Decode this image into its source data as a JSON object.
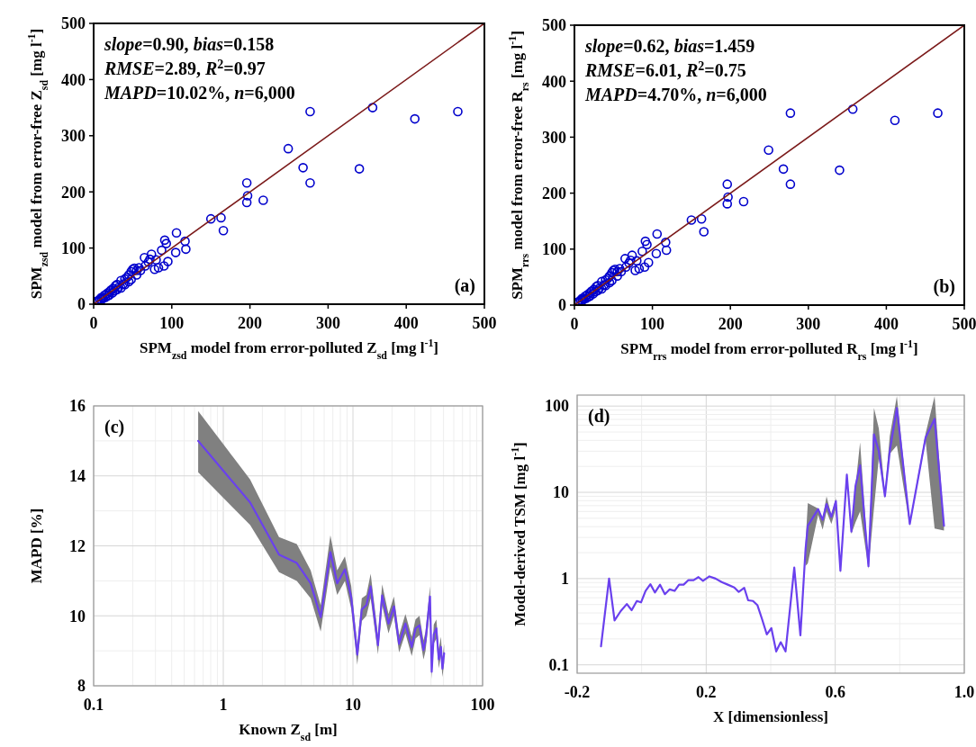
{
  "chart_data": [
    {
      "type": "scatter",
      "xlabel": "SPM$_{zsd}$ model from error-polluted Z$_{sd}$ [mg l$^{-1}$]",
      "ylabel": "SPM$_{zsd}$ model from error-free Z$_{sd}$ [mg l$^{-1}$]",
      "annotations": [
        "slope=0.90, bias=0.158",
        "RMSE=2.89, R$^{2}$=0.97",
        "MAPD=10.02%, n=6,000",
        "(a)"
      ],
      "xlim": [
        0,
        500
      ],
      "ylim": [
        0,
        500
      ],
      "xticks": [
        0,
        100,
        200,
        300,
        400,
        500
      ],
      "yticks": [
        0,
        100,
        200,
        300,
        400,
        500
      ],
      "series": [
        {
          "marker": "circle",
          "color": "#0000cc",
          "x": [
            4,
            5,
            6,
            8,
            10,
            10,
            12,
            14,
            15,
            17,
            18,
            20,
            20,
            22,
            24,
            25,
            27,
            28,
            30,
            30,
            32,
            35,
            35,
            38,
            40,
            40,
            43,
            45,
            45,
            48,
            48,
            50,
            52,
            55,
            55,
            58,
            60,
            65,
            66,
            70,
            72,
            74,
            78,
            80,
            83,
            87,
            90,
            91,
            93,
            95,
            105,
            106,
            117,
            118,
            150,
            163,
            166,
            196,
            197,
            196,
            217,
            249,
            268,
            277,
            277,
            340,
            357,
            411,
            466
          ],
          "values": [
            4.5,
            6,
            5,
            9,
            12,
            8,
            11,
            16,
            12,
            19,
            15,
            22,
            16,
            25,
            20,
            28,
            24,
            33,
            35,
            26,
            30,
            42,
            29,
            36,
            45,
            35,
            48,
            52,
            40,
            58,
            44,
            62,
            64,
            60,
            52,
            65,
            60,
            83,
            68,
            75,
            80,
            89,
            62,
            79,
            65,
            96,
            68,
            114,
            108,
            76,
            92,
            127,
            112,
            98,
            152,
            154,
            131,
            216,
            193,
            181,
            185,
            277,
            243,
            216,
            343,
            241,
            350,
            330,
            343
          ]
        },
        {
          "type": "line",
          "color": "#7b1a1a",
          "x": [
            0,
            500
          ],
          "values": [
            0,
            500
          ]
        }
      ]
    },
    {
      "type": "scatter",
      "xlabel": "SPM$_{rrs}$ model from error-polluted R$_{rs}$ [mg l$^{-1}$]",
      "ylabel": "SPM$_{rrs}$ model from error-free R$_{rs}$ [mg l$^{-1}$]",
      "annotations": [
        "slope=0.62, bias=1.459",
        "RMSE=6.01, R$^{2}$=0.75",
        "MAPD=4.70%, n=6,000",
        "(b)"
      ],
      "xlim": [
        0,
        500
      ],
      "ylim": [
        0,
        500
      ],
      "xticks": [
        0,
        100,
        200,
        300,
        400,
        500
      ],
      "yticks": [
        0,
        100,
        200,
        300,
        400,
        500
      ],
      "series": [
        {
          "marker": "circle",
          "color": "#0000cc",
          "x": [
            4,
            5,
            6,
            8,
            10,
            10,
            12,
            14,
            15,
            17,
            18,
            20,
            20,
            22,
            24,
            25,
            27,
            28,
            30,
            30,
            32,
            35,
            35,
            38,
            40,
            40,
            43,
            45,
            45,
            48,
            48,
            50,
            52,
            55,
            55,
            58,
            60,
            65,
            66,
            70,
            72,
            74,
            78,
            80,
            83,
            87,
            90,
            91,
            93,
            95,
            105,
            106,
            117,
            118,
            150,
            163,
            166,
            196,
            197,
            196,
            217,
            249,
            268,
            277,
            277,
            340,
            357,
            411,
            466
          ],
          "values": [
            4.5,
            6,
            5,
            9,
            12,
            8,
            11,
            16,
            12,
            19,
            15,
            22,
            16,
            25,
            20,
            28,
            24,
            33,
            35,
            26,
            30,
            42,
            29,
            36,
            45,
            35,
            48,
            52,
            40,
            58,
            44,
            62,
            64,
            60,
            52,
            65,
            60,
            83,
            68,
            75,
            80,
            89,
            62,
            79,
            65,
            96,
            68,
            114,
            108,
            76,
            92,
            127,
            112,
            98,
            152,
            154,
            131,
            216,
            193,
            181,
            185,
            277,
            243,
            216,
            343,
            241,
            350,
            330,
            343
          ]
        },
        {
          "type": "line",
          "color": "#7b1a1a",
          "x": [
            0,
            500
          ],
          "values": [
            0,
            500
          ]
        }
      ]
    },
    {
      "type": "line",
      "xlabel": "Known Z$_{sd}$ [m]",
      "ylabel": "MAPD [%]",
      "annotations": [
        "(c)"
      ],
      "log": "x",
      "grid": true,
      "xlim": [
        0.1,
        100
      ],
      "ylim": [
        8,
        16
      ],
      "xticks": [
        0.1,
        1,
        10,
        100,
        {
          "value": 0.2,
          "label": null
        },
        {
          "value": 0.3,
          "label": null
        },
        {
          "value": 0.4,
          "label": null
        },
        {
          "value": 0.5,
          "label": null
        },
        {
          "value": 0.6,
          "label": null
        },
        {
          "value": 0.7,
          "label": null
        },
        {
          "value": 0.8,
          "label": null
        },
        {
          "value": 0.9,
          "label": null
        },
        {
          "value": 2,
          "label": null
        },
        {
          "value": 3,
          "label": null
        },
        {
          "value": 4,
          "label": null
        },
        {
          "value": 5,
          "label": null
        },
        {
          "value": 6,
          "label": null
        },
        {
          "value": 7,
          "label": null
        },
        {
          "value": 8,
          "label": null
        },
        {
          "value": 9,
          "label": null
        },
        {
          "value": 20,
          "label": null
        },
        {
          "value": 30,
          "label": null
        },
        {
          "value": 40,
          "label": null
        },
        {
          "value": 50,
          "label": null
        },
        {
          "value": 60,
          "label": null
        },
        {
          "value": 70,
          "label": null
        },
        {
          "value": 80,
          "label": null
        },
        {
          "value": 90,
          "label": null
        }
      ],
      "yticks": [
        8,
        10,
        12,
        14,
        16,
        {
          "value": 9,
          "label": null
        },
        {
          "value": 11,
          "label": null
        },
        {
          "value": 13,
          "label": null
        },
        {
          "value": 15,
          "label": null
        }
      ],
      "series": [
        {
          "color": "#6a40ee",
          "x": [
            0.64,
            1.61,
            2.69,
            3.69,
            4.72,
            5.64,
            6.7,
            7.56,
            8.67,
            9.7,
            10.8,
            11.7,
            12.7,
            13.7,
            15.6,
            16.8,
            18.8,
            20.7,
            22.7,
            25.4,
            28.4,
            30.4,
            32.6,
            35,
            36.3,
            39.3,
            40.5,
            42,
            44,
            45.9,
            47.7,
            49,
            50.5
          ],
          "values": [
            15.0,
            13.24,
            11.75,
            11.51,
            10.93,
            9.96,
            11.82,
            10.93,
            11.33,
            10.53,
            8.89,
            10.18,
            10.31,
            10.84,
            9.16,
            10.58,
            9.78,
            10.27,
            9.2,
            9.78,
            9.11,
            9.64,
            9.73,
            9.02,
            9.29,
            10.55,
            8.4,
            9.47,
            9.64,
            8.76,
            9.11,
            8.49,
            8.93
          ],
          "lower": [
            14.1,
            12.6,
            11.25,
            11.0,
            10.5,
            9.55,
            11.4,
            10.6,
            11.0,
            10.2,
            8.6,
            9.85,
            10.0,
            10.5,
            8.9,
            10.3,
            9.5,
            10.0,
            8.95,
            9.5,
            8.85,
            9.35,
            9.45,
            8.75,
            9.0,
            10.2,
            8.2,
            9.2,
            9.35,
            8.5,
            8.85,
            8.25,
            8.65
          ],
          "upper": [
            15.85,
            13.9,
            12.25,
            12.05,
            11.3,
            10.3,
            12.3,
            11.3,
            11.7,
            10.85,
            9.15,
            10.5,
            10.6,
            11.2,
            9.45,
            10.9,
            10.05,
            10.55,
            9.45,
            10.05,
            9.4,
            9.9,
            10.0,
            9.3,
            9.55,
            10.85,
            8.65,
            9.75,
            9.9,
            9.05,
            9.4,
            8.75,
            9.2
          ]
        }
      ]
    },
    {
      "type": "line",
      "xlabel": "X [dimensionless]",
      "ylabel": "Model-derived TSM [mg l$^{-1}$]",
      "annotations": [
        "(d)"
      ],
      "log": "y",
      "grid": true,
      "xlim": [
        -0.2,
        1.0
      ],
      "ylim": [
        0.08,
        134
      ],
      "xticks": [
        -0.2,
        0.2,
        0.6,
        {
          "value": 1,
          "label": "1.0"
        },
        {
          "value": 0,
          "label": null
        },
        {
          "value": 0.4,
          "label": null
        },
        {
          "value": 0.8,
          "label": null
        }
      ],
      "yticks": [
        0.1,
        1,
        10,
        100,
        {
          "value": 0.2,
          "label": null
        },
        {
          "value": 0.3,
          "label": null
        },
        {
          "value": 0.4,
          "label": null
        },
        {
          "value": 0.5,
          "label": null
        },
        {
          "value": 0.6,
          "label": null
        },
        {
          "value": 0.7,
          "label": null
        },
        {
          "value": 0.8,
          "label": null
        },
        {
          "value": 0.9,
          "label": null
        },
        {
          "value": 2,
          "label": null
        },
        {
          "value": 3,
          "label": null
        },
        {
          "value": 4,
          "label": null
        },
        {
          "value": 5,
          "label": null
        },
        {
          "value": 6,
          "label": null
        },
        {
          "value": 7,
          "label": null
        },
        {
          "value": 8,
          "label": null
        },
        {
          "value": 9,
          "label": null
        },
        {
          "value": 20,
          "label": null
        },
        {
          "value": 30,
          "label": null
        },
        {
          "value": 40,
          "label": null
        },
        {
          "value": 50,
          "label": null
        },
        {
          "value": 60,
          "label": null
        },
        {
          "value": 70,
          "label": null
        },
        {
          "value": 80,
          "label": null
        },
        {
          "value": 90,
          "label": null
        }
      ],
      "series": [
        {
          "color": "#6a40ee",
          "x": [
            -0.126,
            -0.101,
            -0.084,
            -0.065,
            -0.046,
            -0.031,
            -0.015,
            -0.002,
            0.012,
            0.027,
            0.041,
            0.057,
            0.072,
            0.087,
            0.102,
            0.116,
            0.13,
            0.145,
            0.161,
            0.176,
            0.19,
            0.21,
            0.229,
            0.248,
            0.267,
            0.287,
            0.301,
            0.318,
            0.33,
            0.345,
            0.359,
            0.373,
            0.388,
            0.402,
            0.417,
            0.431,
            0.446,
            0.473,
            0.492,
            0.508,
            0.515,
            0.547,
            0.561,
            0.573,
            0.588,
            0.602,
            0.616,
            0.636,
            0.65,
            0.663,
            0.677,
            0.703,
            0.72,
            0.735,
            0.754,
            0.769,
            0.791,
            0.831,
            0.88,
            0.908,
            0.937
          ],
          "values": [
            0.164,
            1.0,
            0.327,
            0.42,
            0.507,
            0.43,
            0.55,
            0.53,
            0.72,
            0.86,
            0.69,
            0.85,
            0.66,
            0.75,
            0.72,
            0.85,
            0.85,
            0.96,
            0.96,
            1.04,
            0.94,
            1.06,
            1.0,
            0.91,
            0.85,
            0.79,
            0.7,
            0.78,
            0.56,
            0.55,
            0.49,
            0.34,
            0.225,
            0.266,
            0.143,
            0.183,
            0.143,
            1.34,
            0.22,
            2.2,
            4.1,
            6.4,
            4.8,
            7.3,
            5.2,
            7.9,
            1.23,
            16,
            3.5,
            12,
            20.5,
            1.39,
            47,
            30,
            9.0,
            30,
            95,
            4.3,
            43,
            71,
            4.1
          ],
          "lower": [
            null,
            null,
            null,
            null,
            null,
            null,
            null,
            null,
            null,
            null,
            null,
            null,
            null,
            null,
            null,
            null,
            null,
            null,
            null,
            null,
            null,
            null,
            null,
            null,
            null,
            null,
            null,
            null,
            null,
            null,
            null,
            null,
            null,
            null,
            null,
            null,
            null,
            null,
            null,
            1.4,
            1.5,
            5.5,
            3.7,
            6.0,
            4.3,
            6.5,
            1.15,
            15,
            3.3,
            4.5,
            6,
            1.3,
            6.5,
            25,
            8.5,
            28,
            35,
            4.1,
            40,
            3.8,
            3.6
          ],
          "upper": [
            null,
            null,
            null,
            null,
            null,
            null,
            null,
            null,
            null,
            null,
            null,
            null,
            null,
            null,
            null,
            null,
            null,
            null,
            null,
            null,
            null,
            null,
            null,
            null,
            null,
            null,
            null,
            null,
            null,
            null,
            null,
            null,
            null,
            null,
            null,
            null,
            null,
            null,
            null,
            2.6,
            7.5,
            6.5,
            5.0,
            9.0,
            5.5,
            8.5,
            1.3,
            17,
            3.7,
            12,
            38,
            1.5,
            95,
            55,
            10,
            45,
            130,
            4.5,
            48,
            130,
            4.3
          ]
        }
      ]
    }
  ]
}
